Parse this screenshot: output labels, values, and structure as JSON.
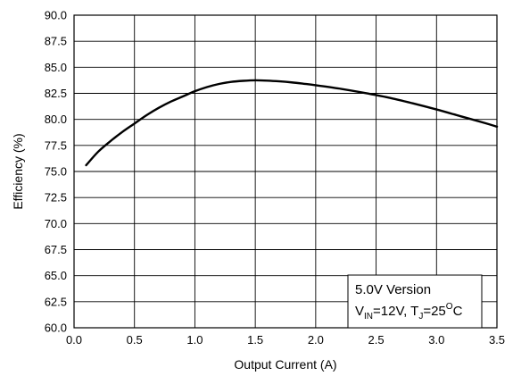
{
  "chart_data": {
    "type": "line",
    "title": "",
    "xlabel": "Output Current (A)",
    "ylabel": "Efficiency (%)",
    "xlim": [
      0.0,
      3.5
    ],
    "ylim": [
      60.0,
      90.0
    ],
    "x_ticks": [
      "0.0",
      "0.5",
      "1.0",
      "1.5",
      "2.0",
      "2.5",
      "3.0",
      "3.5"
    ],
    "y_ticks": [
      "60.0",
      "62.5",
      "65.0",
      "67.5",
      "70.0",
      "72.5",
      "75.0",
      "77.5",
      "80.0",
      "82.5",
      "85.0",
      "87.5",
      "90.0"
    ],
    "grid": true,
    "line_color": "#000000",
    "series": [
      {
        "x": [
          0.1,
          0.2,
          0.3,
          0.4,
          0.5,
          0.6,
          0.7,
          0.8,
          0.9,
          1.0,
          1.1,
          1.2,
          1.3,
          1.4,
          1.5,
          1.6,
          1.7,
          1.8,
          1.9,
          2.0,
          2.2,
          2.4,
          2.6,
          2.8,
          3.0,
          3.2,
          3.4,
          3.5
        ],
        "values": [
          75.6,
          76.9,
          77.9,
          78.8,
          79.6,
          80.4,
          81.1,
          81.7,
          82.2,
          82.7,
          83.1,
          83.4,
          83.6,
          83.7,
          83.75,
          83.72,
          83.65,
          83.55,
          83.42,
          83.28,
          82.95,
          82.55,
          82.1,
          81.55,
          80.95,
          80.3,
          79.65,
          79.3
        ]
      }
    ],
    "legend": {
      "position": "bottom-right",
      "line1": "5.0V Version",
      "line2": {
        "v": "V",
        "v_sub": "IN",
        "eq1": "=12V, T",
        "t_sub": "J",
        "eq2": "=25",
        "deg": "O",
        "unit": "C"
      }
    }
  }
}
